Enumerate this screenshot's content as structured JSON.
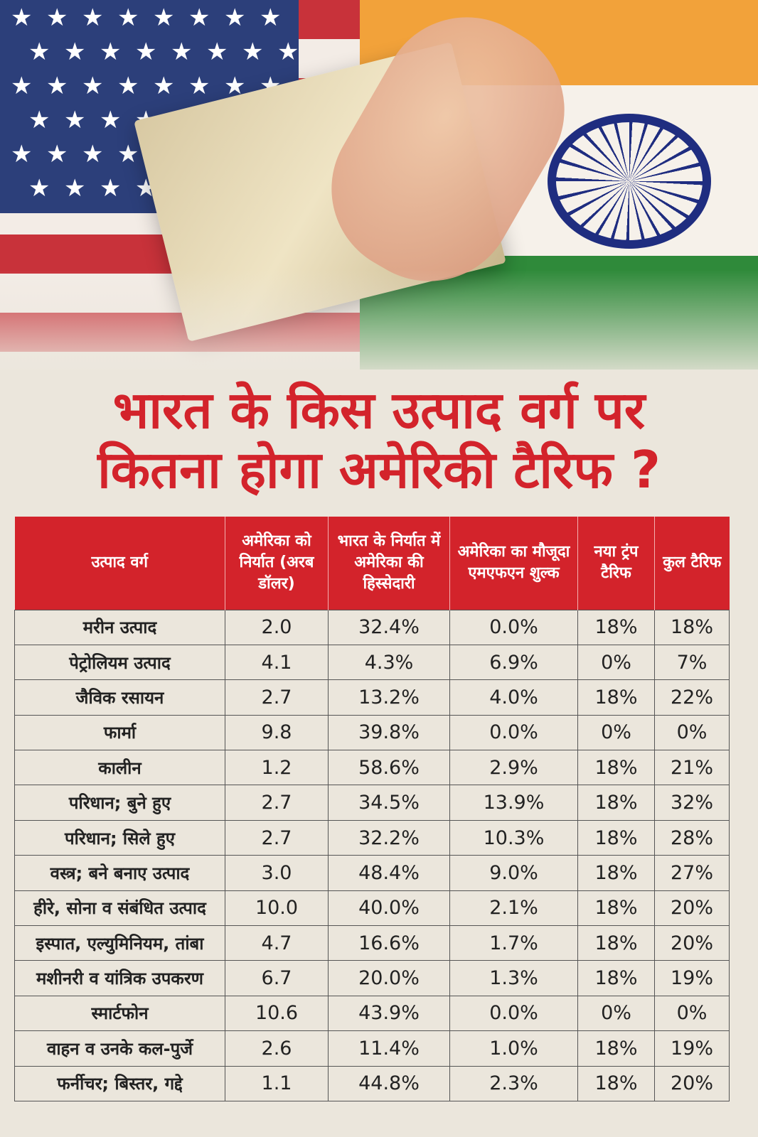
{
  "title": {
    "line1": "भारत के किस उत्पाद वर्ग पर",
    "line2": "कितना होगा अमेरिकी टैरिफ ?"
  },
  "colors": {
    "accent": "#d3232b",
    "background": "#ebe6dc"
  },
  "table": {
    "headers": [
      "उत्पाद वर्ग",
      "अमेरिका को निर्यात (अरब डॉलर)",
      "भारत के निर्यात में अमेरिका की हिस्सेदारी",
      "अमेरिका का मौजूदा एमएफएन शुल्क",
      "नया ट्रंप टैरिफ",
      "कुल टैरिफ"
    ],
    "rows": [
      [
        "मरीन उत्पाद",
        "2.0",
        "32.4%",
        "0.0%",
        "18%",
        "18%"
      ],
      [
        "पेट्रोलियम उत्पाद",
        "4.1",
        "4.3%",
        "6.9%",
        "0%",
        "7%"
      ],
      [
        "जैविक रसायन",
        "2.7",
        "13.2%",
        "4.0%",
        "18%",
        "22%"
      ],
      [
        "फार्मा",
        "9.8",
        "39.8%",
        "0.0%",
        "0%",
        "0%"
      ],
      [
        "कालीन",
        "1.2",
        "58.6%",
        "2.9%",
        "18%",
        "21%"
      ],
      [
        "परिधान; बुने हुए",
        "2.7",
        "34.5%",
        "13.9%",
        "18%",
        "32%"
      ],
      [
        "परिधान; सिले हुए",
        "2.7",
        "32.2%",
        "10.3%",
        "18%",
        "28%"
      ],
      [
        "वस्त्र; बने बनाए उत्पाद",
        "3.0",
        "48.4%",
        "9.0%",
        "18%",
        "27%"
      ],
      [
        "हीरे, सोना व संबंधित उत्पाद",
        "10.0",
        "40.0%",
        "2.1%",
        "18%",
        "20%"
      ],
      [
        "इस्पात, एल्युमिनियम, तांबा",
        "4.7",
        "16.6%",
        "1.7%",
        "18%",
        "20%"
      ],
      [
        "मशीनरी व यांत्रिक उपकरण",
        "6.7",
        "20.0%",
        "1.3%",
        "18%",
        "19%"
      ],
      [
        "स्मार्टफोन",
        "10.6",
        "43.9%",
        "0.0%",
        "0%",
        "0%"
      ],
      [
        "वाहन व उनके कल-पुर्जे",
        "2.6",
        "11.4%",
        "1.0%",
        "18%",
        "19%"
      ],
      [
        "फर्नीचर; बिस्तर, गद्दे",
        "1.1",
        "44.8%",
        "2.3%",
        "18%",
        "20%"
      ]
    ]
  }
}
